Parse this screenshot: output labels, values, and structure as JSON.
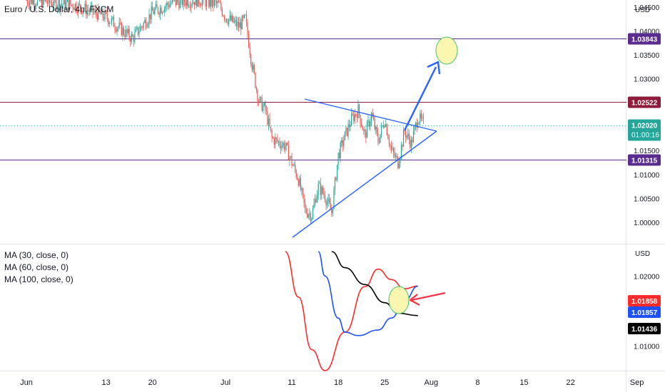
{
  "header": {
    "symbol_title": "Euro / U.S. Dollar, 4h, FXCM",
    "currency_top": "USD",
    "currency_bottom": "USD"
  },
  "indicators": [
    {
      "label": "MA (30, close, 0)",
      "color": "#ff2a2a"
    },
    {
      "label": "MA (60, close, 0)",
      "color": "#1e50ff"
    },
    {
      "label": "MA (100, close, 0)",
      "color": "#000000"
    }
  ],
  "colors": {
    "up": "#26a69a",
    "down": "#ef5350",
    "level_line": "#5b2c8f",
    "level_line_red": "#8e1b3a",
    "current_price": "#26a69a",
    "annotation": "#2962ff",
    "highlight_fill": "#fbf7b0",
    "highlight_stroke": "#46c46e",
    "arrow_red": "#f23645"
  },
  "chart_data": [
    {
      "type": "candlestick",
      "title": "Euro / U.S. Dollar, 4h, FXCM",
      "ylabel": "USD",
      "x_tick_labels": [
        "Jun",
        "13",
        "20",
        "Jul",
        "11",
        "18",
        "25",
        "Aug",
        "8",
        "15",
        "22",
        "Sep"
      ],
      "y_tick_labels": [
        "1.04500",
        "1.04000",
        "1.03500",
        "1.03000",
        "1.01500",
        "1.01000",
        "1.00500",
        "1.00000"
      ],
      "ylim": [
        0.9955,
        1.0465
      ],
      "horizontal_levels": [
        {
          "value": 1.03843,
          "label": "1.03843",
          "color": "#5b2c8f"
        },
        {
          "value": 1.02522,
          "label": "1.02522",
          "color": "#8e1b3a"
        },
        {
          "value": 1.01315,
          "label": "1.01315",
          "color": "#5b2c8f"
        }
      ],
      "current_price": {
        "value": 1.0202,
        "label": "1.02020",
        "countdown": "01:00:16"
      },
      "price_path": [
        {
          "d": "Jun 1",
          "p": 1.0465
        },
        {
          "d": "Jun 8",
          "p": 1.0455
        },
        {
          "d": "Jun 13",
          "p": 1.043
        },
        {
          "d": "Jun 16",
          "p": 1.0395
        },
        {
          "d": "Jun 17",
          "p": 1.0385
        },
        {
          "d": "Jun 20",
          "p": 1.044
        },
        {
          "d": "Jun 23",
          "p": 1.046
        },
        {
          "d": "Jun 27",
          "p": 1.0465
        },
        {
          "d": "Jun 30",
          "p": 1.0455
        },
        {
          "d": "Jul 1",
          "p": 1.043
        },
        {
          "d": "Jul 3",
          "p": 1.041
        },
        {
          "d": "Jul 4",
          "p": 1.0425
        },
        {
          "d": "Jul 5",
          "p": 1.033
        },
        {
          "d": "Jul 6",
          "p": 1.0255
        },
        {
          "d": "Jul 7",
          "p": 1.0235
        },
        {
          "d": "Jul 8",
          "p": 1.0175
        },
        {
          "d": "Jul 10",
          "p": 1.016
        },
        {
          "d": "Jul 12",
          "p": 1.009
        },
        {
          "d": "Jul 13",
          "p": 1.0025
        },
        {
          "d": "Jul 14",
          "p": 1.0015
        },
        {
          "d": "Jul 15",
          "p": 1.0075
        },
        {
          "d": "Jul 16",
          "p": 1.0055
        },
        {
          "d": "Jul 17",
          "p": 1.002
        },
        {
          "d": "Jul 18",
          "p": 1.014
        },
        {
          "d": "Jul 19",
          "p": 1.018
        },
        {
          "d": "Jul 20",
          "p": 1.0215
        },
        {
          "d": "Jul 21",
          "p": 1.0235
        },
        {
          "d": "Jul 22",
          "p": 1.018
        },
        {
          "d": "Jul 23",
          "p": 1.0225
        },
        {
          "d": "Jul 24",
          "p": 1.017
        },
        {
          "d": "Jul 25",
          "p": 1.0215
        },
        {
          "d": "Jul 26",
          "p": 1.015
        },
        {
          "d": "Jul 27",
          "p": 1.0125
        },
        {
          "d": "Jul 28",
          "p": 1.019
        },
        {
          "d": "Jul 29",
          "p": 1.0165
        },
        {
          "d": "Jul 30",
          "p": 1.022
        },
        {
          "d": "Jul 31",
          "p": 1.0202
        }
      ]
    },
    {
      "type": "line",
      "ylabel": "USD",
      "y_tick_labels": [
        "1.02000",
        "1.01500",
        "1.01000"
      ],
      "ylim": [
        1.0065,
        1.0235
      ],
      "series": [
        {
          "name": "MA (30, close, 0)",
          "color": "#ff2a2a",
          "value_label": "1.01858",
          "points": [
            {
              "d": "Jul 10",
              "v": 1.0235
            },
            {
              "d": "Jul 12",
              "v": 1.017
            },
            {
              "d": "Jul 14",
              "v": 1.0095
            },
            {
              "d": "Jul 16",
              "v": 1.0065
            },
            {
              "d": "Jul 19",
              "v": 1.012
            },
            {
              "d": "Jul 22",
              "v": 1.0185
            },
            {
              "d": "Jul 24",
              "v": 1.021
            },
            {
              "d": "Jul 26",
              "v": 1.0195
            },
            {
              "d": "Jul 28",
              "v": 1.0182
            },
            {
              "d": "Jul 30",
              "v": 1.01858
            }
          ]
        },
        {
          "name": "MA (60, close, 0)",
          "color": "#1e50ff",
          "value_label": "1.01857",
          "points": [
            {
              "d": "Jul 15",
              "v": 1.0235
            },
            {
              "d": "Jul 16",
              "v": 1.02
            },
            {
              "d": "Jul 18",
              "v": 1.014
            },
            {
              "d": "Jul 19",
              "v": 1.012
            },
            {
              "d": "Jul 21",
              "v": 1.0115
            },
            {
              "d": "Jul 24",
              "v": 1.0123
            },
            {
              "d": "Jul 26",
              "v": 1.014
            },
            {
              "d": "Jul 28",
              "v": 1.0165
            },
            {
              "d": "Jul 30",
              "v": 1.01857
            }
          ]
        },
        {
          "name": "MA (100, close, 0)",
          "color": "#000000",
          "value_label": "1.01436",
          "points": [
            {
              "d": "Jul 17",
              "v": 1.0235
            },
            {
              "d": "Jul 19",
              "v": 1.0212
            },
            {
              "d": "Jul 22",
              "v": 1.0188
            },
            {
              "d": "Jul 25",
              "v": 1.0162
            },
            {
              "d": "Jul 27",
              "v": 1.0147
            },
            {
              "d": "Jul 30",
              "v": 1.01436
            }
          ]
        }
      ]
    }
  ]
}
